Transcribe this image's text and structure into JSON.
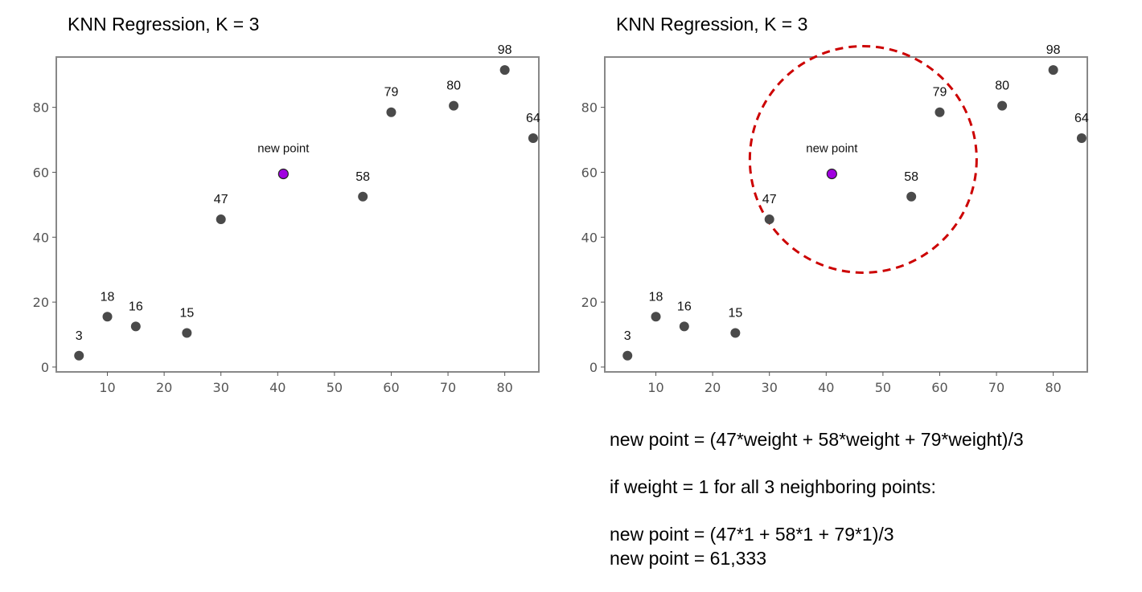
{
  "chart_data": [
    {
      "type": "scatter",
      "title": "KNN Regression, K = 3",
      "xlim": [
        1,
        86
      ],
      "ylim": [
        -1.5,
        95.5
      ],
      "xticks": [
        10,
        20,
        30,
        40,
        50,
        60,
        70,
        80
      ],
      "yticks": [
        0,
        20,
        40,
        60,
        80
      ],
      "grid": false,
      "points": [
        {
          "x": 5,
          "y": 3.5,
          "label": "3"
        },
        {
          "x": 10,
          "y": 15.5,
          "label": "18"
        },
        {
          "x": 15,
          "y": 12.5,
          "label": "16"
        },
        {
          "x": 24,
          "y": 10.5,
          "label": "15"
        },
        {
          "x": 30,
          "y": 45.5,
          "label": "47"
        },
        {
          "x": 55,
          "y": 52.5,
          "label": "58"
        },
        {
          "x": 60,
          "y": 78.5,
          "label": "79"
        },
        {
          "x": 71,
          "y": 80.5,
          "label": "80"
        },
        {
          "x": 80,
          "y": 91.5,
          "label": "98"
        },
        {
          "x": 85,
          "y": 70.5,
          "label": "64"
        }
      ],
      "new_point": {
        "x": 41,
        "y": 59.5,
        "label": "new point",
        "color": "#a000e0"
      },
      "point_color": "#4a4a4a"
    },
    {
      "type": "scatter",
      "title": "KNN Regression, K = 3",
      "xlim": [
        1,
        86
      ],
      "ylim": [
        -1.5,
        95.5
      ],
      "xticks": [
        10,
        20,
        30,
        40,
        50,
        60,
        70,
        80
      ],
      "yticks": [
        0,
        20,
        40,
        60,
        80
      ],
      "grid": false,
      "points": [
        {
          "x": 5,
          "y": 3.5,
          "label": "3"
        },
        {
          "x": 10,
          "y": 15.5,
          "label": "18"
        },
        {
          "x": 15,
          "y": 12.5,
          "label": "16"
        },
        {
          "x": 24,
          "y": 10.5,
          "label": "15"
        },
        {
          "x": 30,
          "y": 45.5,
          "label": "47"
        },
        {
          "x": 55,
          "y": 52.5,
          "label": "58"
        },
        {
          "x": 60,
          "y": 78.5,
          "label": "79"
        },
        {
          "x": 71,
          "y": 80.5,
          "label": "80"
        },
        {
          "x": 80,
          "y": 91.5,
          "label": "98"
        },
        {
          "x": 85,
          "y": 70.5,
          "label": "64"
        }
      ],
      "new_point": {
        "x": 41,
        "y": 59.5,
        "label": "new point",
        "color": "#a000e0"
      },
      "point_color": "#4a4a4a",
      "neighborhood_circle": {
        "color": "#cc0000",
        "style": "dashed"
      }
    }
  ],
  "explanation": {
    "formula": "new point = (47*weight + 58*weight  + 79*weight)/3",
    "condition": "if weight = 1 for all 3 neighboring points:",
    "computation": "new point = (47*1 + 58*1 + 79*1)/3",
    "result": "new point = 61,333"
  }
}
